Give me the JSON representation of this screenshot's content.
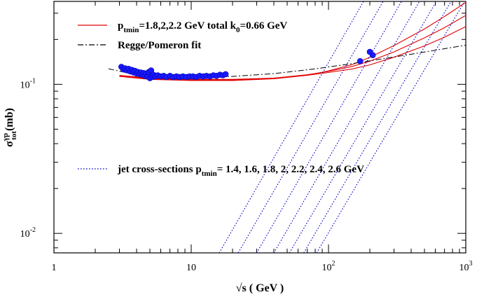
{
  "chart_data": {
    "type": "line",
    "xscale": "log",
    "yscale": "log",
    "xlim": [
      1,
      1000
    ],
    "ylim": [
      0.0074,
      0.36
    ],
    "xlabel_root": "√s",
    "xlabel_rest": " ( GeV )",
    "ylabel_main": "σ",
    "ylabel_sup": "γp",
    "ylabel_sub": "tot",
    "ylabel_rest": "(mb)",
    "x_ticks": [
      {
        "value": 1,
        "base": "1",
        "exp": ""
      },
      {
        "value": 10,
        "base": "10",
        "exp": ""
      },
      {
        "value": 100,
        "base": "10",
        "exp": "2"
      },
      {
        "value": 1000,
        "base": "10",
        "exp": "3"
      }
    ],
    "y_ticks": [
      {
        "value": 0.01,
        "base": "10",
        "exp": "-2"
      },
      {
        "value": 0.1,
        "base": "10",
        "exp": "-1"
      }
    ],
    "legend": [
      {
        "series": "model",
        "parts": [
          {
            "t": "p"
          },
          {
            "t": "tmin",
            "sub": true
          },
          {
            "t": "=1.8,2,2.2 GeV total k"
          },
          {
            "t": "0",
            "sub": true
          },
          {
            "t": "=0.66 GeV"
          }
        ]
      },
      {
        "series": "regge",
        "parts": [
          {
            "t": "Regge/Pomeron fit"
          }
        ]
      },
      {
        "series": "jets",
        "parts": [
          {
            "t": "jet cross-sections p"
          },
          {
            "t": "tmin",
            "sub": true
          },
          {
            "t": "=  1.4, 1.6, 1.8, 2, 2.2, 2.4, 2.6 GeV"
          }
        ]
      }
    ],
    "colors": {
      "model": "#e00000",
      "regge": "#000000",
      "jets": "#0000cc",
      "data": "#1a1aff"
    },
    "series": [
      {
        "key": "model",
        "points": [
          [
            3,
            0.113
          ],
          [
            5,
            0.108
          ],
          [
            10,
            0.106
          ],
          [
            20,
            0.106
          ],
          [
            40,
            0.109
          ],
          [
            70,
            0.115
          ],
          [
            100,
            0.123
          ],
          [
            150,
            0.136
          ],
          [
            200,
            0.152
          ],
          [
            300,
            0.182
          ],
          [
            500,
            0.235
          ],
          [
            700,
            0.285
          ],
          [
            1000,
            0.355
          ]
        ]
      },
      {
        "key": "model",
        "points": [
          [
            3,
            0.114
          ],
          [
            5,
            0.109
          ],
          [
            10,
            0.107
          ],
          [
            20,
            0.107
          ],
          [
            40,
            0.11
          ],
          [
            70,
            0.116
          ],
          [
            100,
            0.122
          ],
          [
            150,
            0.132
          ],
          [
            200,
            0.143
          ],
          [
            300,
            0.165
          ],
          [
            500,
            0.205
          ],
          [
            700,
            0.24
          ],
          [
            1000,
            0.29
          ]
        ]
      },
      {
        "key": "model",
        "points": [
          [
            3,
            0.115
          ],
          [
            5,
            0.11
          ],
          [
            10,
            0.108
          ],
          [
            20,
            0.108
          ],
          [
            40,
            0.11
          ],
          [
            70,
            0.115
          ],
          [
            100,
            0.12
          ],
          [
            150,
            0.127
          ],
          [
            200,
            0.135
          ],
          [
            300,
            0.152
          ],
          [
            500,
            0.181
          ],
          [
            700,
            0.207
          ],
          [
            1000,
            0.244
          ]
        ]
      },
      {
        "key": "regge",
        "points": [
          [
            2.5,
            0.127
          ],
          [
            4,
            0.116
          ],
          [
            6,
            0.112
          ],
          [
            10,
            0.111
          ],
          [
            20,
            0.113
          ],
          [
            40,
            0.118
          ],
          [
            80,
            0.127
          ],
          [
            160,
            0.139
          ],
          [
            320,
            0.154
          ],
          [
            640,
            0.171
          ],
          [
            1000,
            0.183
          ]
        ]
      },
      {
        "key": "jets",
        "points": [
          [
            16,
            0.0074
          ],
          [
            180,
            0.36
          ]
        ]
      },
      {
        "key": "jets",
        "points": [
          [
            22,
            0.0074
          ],
          [
            250,
            0.36
          ]
        ]
      },
      {
        "key": "jets",
        "points": [
          [
            30,
            0.0074
          ],
          [
            340,
            0.36
          ]
        ]
      },
      {
        "key": "jets",
        "points": [
          [
            40,
            0.0074
          ],
          [
            460,
            0.36
          ]
        ]
      },
      {
        "key": "jets",
        "points": [
          [
            52,
            0.0074
          ],
          [
            610,
            0.36
          ]
        ]
      },
      {
        "key": "jets",
        "points": [
          [
            66,
            0.0074
          ],
          [
            780,
            0.36
          ]
        ]
      },
      {
        "key": "jets",
        "points": [
          [
            82,
            0.0074
          ],
          [
            980,
            0.36
          ]
        ]
      }
    ],
    "data_points": [
      [
        3.1,
        0.131
      ],
      [
        3.2,
        0.126
      ],
      [
        3.3,
        0.128
      ],
      [
        3.4,
        0.124
      ],
      [
        3.5,
        0.127
      ],
      [
        3.6,
        0.122
      ],
      [
        3.7,
        0.125
      ],
      [
        3.8,
        0.12
      ],
      [
        3.9,
        0.123
      ],
      [
        4.0,
        0.118
      ],
      [
        4.1,
        0.121
      ],
      [
        4.2,
        0.117
      ],
      [
        4.3,
        0.12
      ],
      [
        4.4,
        0.116
      ],
      [
        4.5,
        0.119
      ],
      [
        4.6,
        0.114
      ],
      [
        4.7,
        0.118
      ],
      [
        4.8,
        0.113
      ],
      [
        4.9,
        0.121
      ],
      [
        5.0,
        0.11
      ],
      [
        5.1,
        0.124
      ],
      [
        5.2,
        0.112
      ],
      [
        5.3,
        0.116
      ],
      [
        5.5,
        0.113
      ],
      [
        5.7,
        0.115
      ],
      [
        6.0,
        0.113
      ],
      [
        6.3,
        0.114
      ],
      [
        6.6,
        0.112
      ],
      [
        7.0,
        0.114
      ],
      [
        7.4,
        0.112
      ],
      [
        7.8,
        0.113
      ],
      [
        8.2,
        0.112
      ],
      [
        8.7,
        0.113
      ],
      [
        9.2,
        0.112
      ],
      [
        9.7,
        0.113
      ],
      [
        10.3,
        0.113
      ],
      [
        10.9,
        0.112
      ],
      [
        11.5,
        0.114
      ],
      [
        12.2,
        0.113
      ],
      [
        12.9,
        0.114
      ],
      [
        13.7,
        0.113
      ],
      [
        14.5,
        0.115
      ],
      [
        15.3,
        0.114
      ],
      [
        16.2,
        0.116
      ],
      [
        17.0,
        0.115
      ],
      [
        17.8,
        0.117
      ],
      [
        170,
        0.143
      ],
      [
        200,
        0.165
      ],
      [
        210,
        0.157
      ]
    ]
  }
}
